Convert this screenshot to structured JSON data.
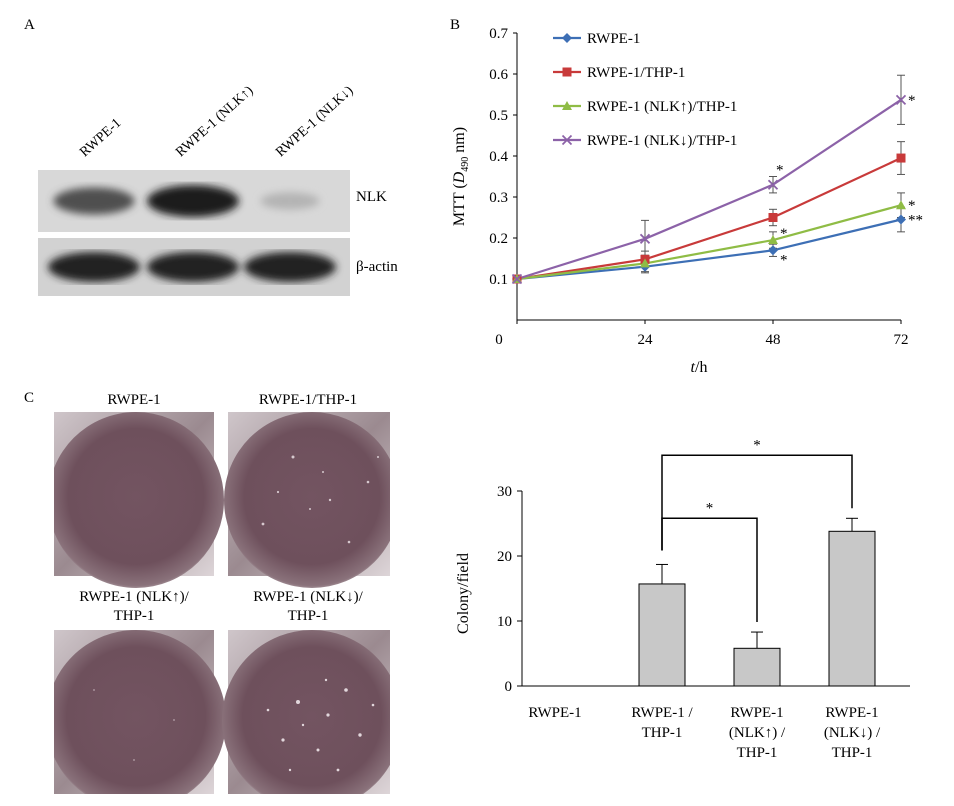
{
  "panel_labels": {
    "a": "A",
    "b": "B",
    "c": "C"
  },
  "western_blot": {
    "lanes": [
      "RWPE-1",
      "RWPE-1 (NLK↑)",
      "RWPE-1 (NLK↓)"
    ],
    "bands": [
      "NLK",
      "β-actin"
    ],
    "nlk_intensity": [
      0.75,
      1.0,
      0.25
    ],
    "actin_intensity": [
      1.0,
      1.0,
      1.0
    ]
  },
  "colony_images": {
    "titles": [
      {
        "line1": "RWPE-1",
        "line2": ""
      },
      {
        "line1": "RWPE-1/THP-1",
        "line2": ""
      },
      {
        "line1": "RWPE-1 (NLK↑)/",
        "line2": "THP-1"
      },
      {
        "line1": "RWPE-1 (NLK↓)/",
        "line2": "THP-1"
      }
    ]
  },
  "chart_data": [
    {
      "type": "line",
      "title": "",
      "xlabel_italic": "t",
      "xlabel_rest": "/h",
      "ylabel_prefix": "MTT (",
      "ylabel_italic": "D",
      "ylabel_sub": "490",
      "ylabel_suffix": " nm)",
      "x": [
        0,
        24,
        48,
        72
      ],
      "x_ticks": [
        "0",
        "24",
        "48",
        "72"
      ],
      "ylim": [
        0,
        0.7
      ],
      "y_ticks": [
        "0.1",
        "0.2",
        "0.3",
        "0.4",
        "0.5",
        "0.6",
        "0.7"
      ],
      "legend_position": "top-left",
      "series": [
        {
          "name": "RWPE-1",
          "color": "#3d6fb5",
          "marker": "diamond",
          "values": [
            0.1,
            0.13,
            0.17,
            0.245
          ],
          "errors": [
            0,
            0.015,
            0.015,
            0.03
          ],
          "annotations": [
            "",
            "",
            "*",
            "**"
          ]
        },
        {
          "name": "RWPE-1/THP-1",
          "color": "#c83a3a",
          "marker": "square",
          "values": [
            0.1,
            0.148,
            0.25,
            0.395
          ],
          "errors": [
            0,
            0.02,
            0.02,
            0.04
          ],
          "annotations": [
            "",
            "",
            "",
            ""
          ]
        },
        {
          "name": "RWPE-1 (NLK↑)/THP-1",
          "color": "#8fbc45",
          "marker": "triangle",
          "values": [
            0.1,
            0.138,
            0.195,
            0.28
          ],
          "errors": [
            0,
            0.02,
            0.02,
            0.03
          ],
          "annotations": [
            "",
            "",
            "*",
            "*"
          ]
        },
        {
          "name": "RWPE-1 (NLK↓)/THP-1",
          "color": "#8c62a8",
          "marker": "x",
          "values": [
            0.1,
            0.198,
            0.33,
            0.537
          ],
          "errors": [
            0,
            0.045,
            0.02,
            0.06
          ],
          "annotations": [
            "",
            "",
            "*",
            "*"
          ]
        }
      ]
    },
    {
      "type": "bar",
      "title": "",
      "xlabel": "",
      "ylabel": "Colony/field",
      "ylim": [
        0,
        30
      ],
      "y_ticks": [
        "0",
        "10",
        "20",
        "30"
      ],
      "categories": [
        [
          "RWPE-1"
        ],
        [
          "RWPE-1 /",
          "THP-1"
        ],
        [
          "RWPE-1",
          "(NLK↑) /",
          "THP-1"
        ],
        [
          "RWPE-1",
          "(NLK↓) /",
          "THP-1"
        ]
      ],
      "values": [
        0,
        15.7,
        5.8,
        23.8
      ],
      "errors": [
        0,
        3.0,
        2.5,
        2.0
      ],
      "bar_color": "#c8c8c8",
      "significance": [
        {
          "from": 1,
          "to": 2,
          "label": "*"
        },
        {
          "from": 1,
          "to": 3,
          "label": "*"
        }
      ]
    }
  ]
}
